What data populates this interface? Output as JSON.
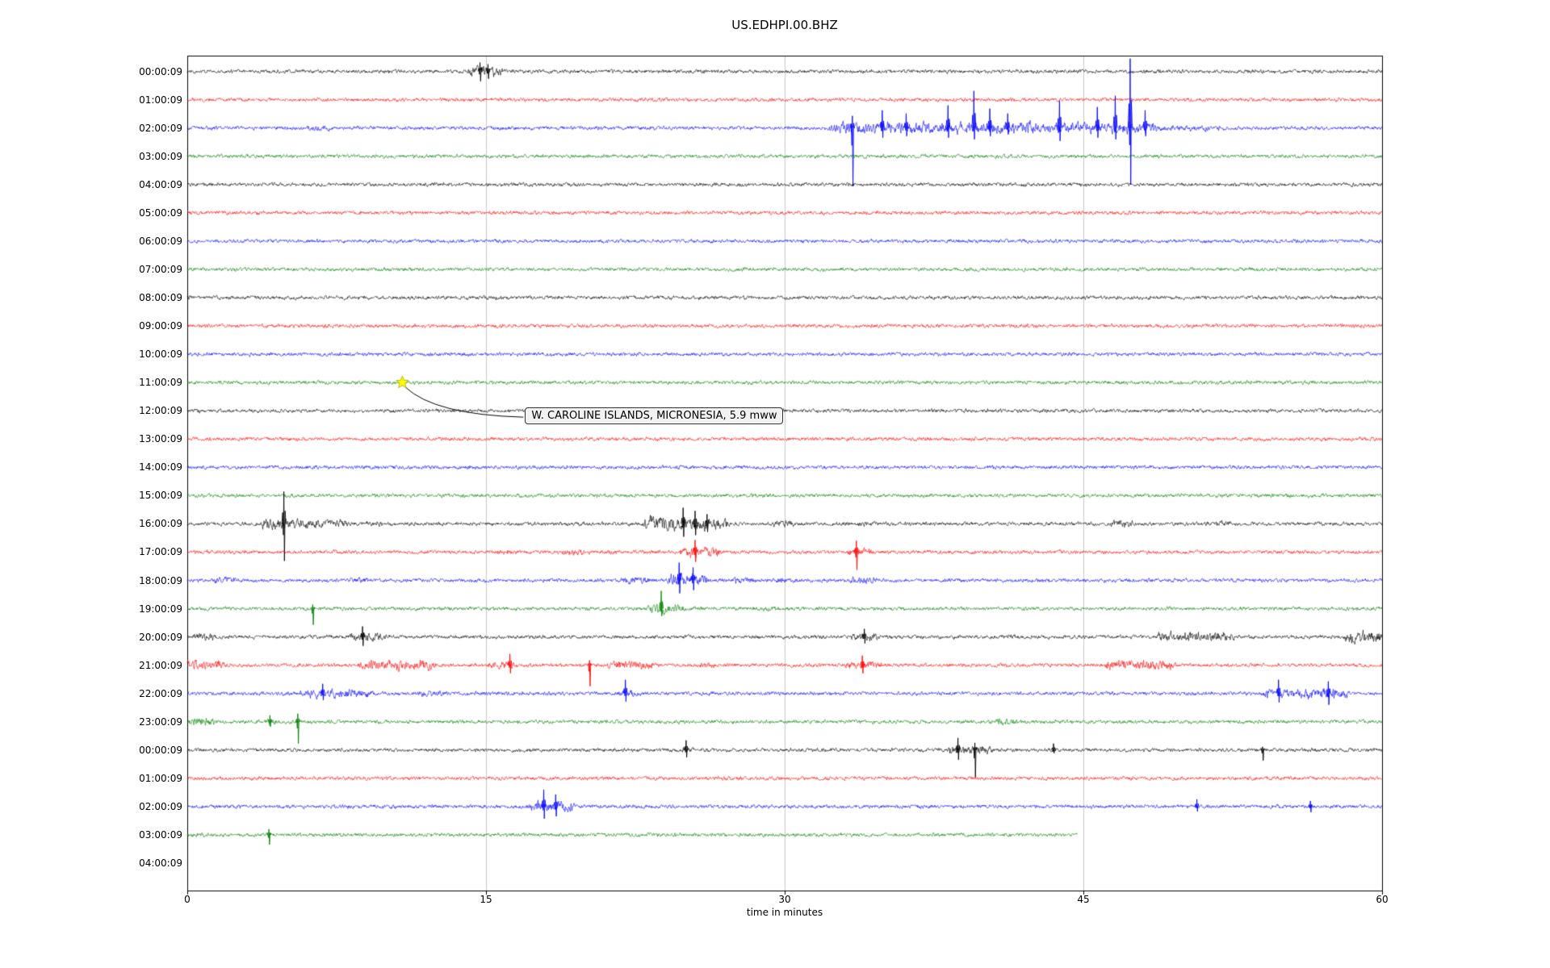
{
  "chart_data": {
    "type": "line",
    "subtype": "helicorder-seismogram",
    "title": "US.EDHPI.00.BHZ",
    "xlabel": "time in minutes",
    "xlim": [
      0,
      60
    ],
    "x_ticks": [
      0,
      15,
      30,
      45,
      60
    ],
    "grid": true,
    "grid_lines_minutes": [
      15,
      30,
      45
    ],
    "colors": {
      "black": "#000000",
      "red": "#ff0000",
      "blue": "#0000ff",
      "green": "#008000"
    },
    "annotation": {
      "text": "W. CAROLINE ISLANDS, MICRONESIA, 5.9 mww",
      "row_index": 11,
      "row_label": "11:00:09",
      "x_minutes": 10.8,
      "marker": "star",
      "marker_color": "#ffff00"
    },
    "rows": [
      {
        "label": "00:00:09",
        "color": "black",
        "bursts": [
          [
            14.2,
            15.7,
            8
          ]
        ],
        "spikes": [
          [
            14.7,
            11,
            12
          ],
          [
            15.1,
            9,
            9
          ]
        ]
      },
      {
        "label": "01:00:09",
        "color": "red",
        "bursts": [],
        "spikes": []
      },
      {
        "label": "02:00:09",
        "color": "blue",
        "bursts": [
          [
            6.1,
            7.2,
            4
          ],
          [
            32.3,
            44.5,
            8
          ],
          [
            44.5,
            48.6,
            8
          ],
          [
            48.6,
            52,
            4
          ]
        ],
        "spikes": [
          [
            33.4,
            15,
            72
          ],
          [
            34.9,
            22,
            12
          ],
          [
            36.1,
            18,
            10
          ],
          [
            38.2,
            28,
            12
          ],
          [
            39.5,
            46,
            14
          ],
          [
            40.3,
            24,
            10
          ],
          [
            41.2,
            18,
            8
          ],
          [
            43.8,
            34,
            16
          ],
          [
            45.7,
            26,
            12
          ],
          [
            46.6,
            40,
            14
          ],
          [
            47.35,
            86,
            70
          ],
          [
            48.1,
            22,
            10
          ]
        ]
      },
      {
        "label": "03:00:09",
        "color": "green",
        "bursts": [],
        "spikes": []
      },
      {
        "label": "04:00:09",
        "color": "black",
        "bursts": [
          [
            11.4,
            13.2,
            3
          ],
          [
            30.5,
            31.2,
            2.5
          ]
        ],
        "spikes": []
      },
      {
        "label": "05:00:09",
        "color": "red",
        "bursts": [],
        "spikes": []
      },
      {
        "label": "06:00:09",
        "color": "blue",
        "bursts": [],
        "spikes": []
      },
      {
        "label": "07:00:09",
        "color": "green",
        "bursts": [],
        "spikes": []
      },
      {
        "label": "08:00:09",
        "color": "black",
        "bursts": [],
        "spikes": []
      },
      {
        "label": "09:00:09",
        "color": "red",
        "bursts": [],
        "spikes": []
      },
      {
        "label": "10:00:09",
        "color": "blue",
        "bursts": [],
        "spikes": []
      },
      {
        "label": "11:00:09",
        "color": "green",
        "bursts": [],
        "spikes": []
      },
      {
        "label": "12:00:09",
        "color": "black",
        "bursts": [],
        "spikes": []
      },
      {
        "label": "13:00:09",
        "color": "red",
        "bursts": [],
        "spikes": []
      },
      {
        "label": "14:00:09",
        "color": "blue",
        "bursts": [],
        "spikes": []
      },
      {
        "label": "15:00:09",
        "color": "green",
        "bursts": [],
        "spikes": []
      },
      {
        "label": "16:00:09",
        "color": "black",
        "bursts": [
          [
            3.8,
            5.6,
            8
          ],
          [
            5.6,
            8.0,
            6
          ],
          [
            9.0,
            9.7,
            4
          ],
          [
            23,
            24.5,
            10
          ],
          [
            24.5,
            27,
            9
          ],
          [
            29.5,
            30.3,
            5
          ],
          [
            33.7,
            34.5,
            4
          ],
          [
            46.4,
            47.4,
            5
          ],
          [
            51.3,
            52.4,
            4
          ],
          [
            56.8,
            57.6,
            3
          ]
        ],
        "spikes": [
          [
            4.85,
            40,
            46
          ],
          [
            24.9,
            20,
            16
          ],
          [
            25.5,
            16,
            14
          ],
          [
            26.1,
            12,
            10
          ]
        ]
      },
      {
        "label": "17:00:09",
        "color": "red",
        "bursts": [
          [
            15.4,
            16.3,
            4
          ],
          [
            18.8,
            19.7,
            5
          ],
          [
            21,
            21.6,
            3
          ],
          [
            24.8,
            26.6,
            7
          ],
          [
            33.2,
            34.3,
            5
          ]
        ],
        "spikes": [
          [
            25.5,
            15,
            12
          ],
          [
            33.6,
            14,
            22
          ]
        ]
      },
      {
        "label": "18:00:09",
        "color": "blue",
        "bursts": [
          [
            1.4,
            2.3,
            5
          ],
          [
            8.1,
            9.0,
            4
          ],
          [
            21.8,
            23.2,
            5
          ],
          [
            24.2,
            26,
            8
          ],
          [
            27.4,
            28.4,
            5
          ],
          [
            29.6,
            30.6,
            4
          ],
          [
            33.4,
            34.6,
            5
          ]
        ],
        "spikes": [
          [
            24.7,
            22,
            16
          ],
          [
            25.4,
            16,
            12
          ]
        ]
      },
      {
        "label": "19:00:09",
        "color": "green",
        "bursts": [
          [
            23.2,
            24.8,
            7
          ],
          [
            25.5,
            26.5,
            3
          ],
          [
            28.6,
            29.5,
            4
          ]
        ],
        "spikes": [
          [
            6.3,
            5,
            20
          ],
          [
            23.8,
            22,
            9
          ]
        ]
      },
      {
        "label": "20:00:09",
        "color": "black",
        "bursts": [
          [
            0.4,
            1.3,
            5
          ],
          [
            8.2,
            10,
            6
          ],
          [
            33.4,
            34.6,
            5
          ],
          [
            41,
            41.6,
            3
          ],
          [
            48.8,
            52.4,
            7
          ],
          [
            58.2,
            60,
            8
          ]
        ],
        "spikes": [
          [
            8.8,
            13,
            11
          ],
          [
            34,
            10,
            8
          ]
        ]
      },
      {
        "label": "21:00:09",
        "color": "red",
        "bursts": [
          [
            0,
            1.7,
            7
          ],
          [
            8.7,
            12.3,
            7
          ],
          [
            15.2,
            16.3,
            5
          ],
          [
            21.2,
            23.3,
            6
          ],
          [
            25.8,
            26.4,
            4
          ],
          [
            33.1,
            34.7,
            6
          ],
          [
            46.2,
            49.4,
            7
          ]
        ],
        "spikes": [
          [
            16.2,
            14,
            10
          ],
          [
            20.2,
            6,
            26
          ],
          [
            33.9,
            12,
            10
          ]
        ]
      },
      {
        "label": "22:00:09",
        "color": "blue",
        "bursts": [
          [
            5.7,
            9.2,
            6
          ],
          [
            11.7,
            13.1,
            4
          ],
          [
            21.7,
            22.6,
            5
          ],
          [
            50.4,
            51.1,
            3
          ],
          [
            54.1,
            58.2,
            7
          ]
        ],
        "spikes": [
          [
            6.8,
            12,
            8
          ],
          [
            22.0,
            17,
            10
          ],
          [
            54.8,
            17,
            11
          ],
          [
            57.3,
            15,
            14
          ]
        ]
      },
      {
        "label": "23:00:09",
        "color": "green",
        "bursts": [
          [
            0.1,
            1.3,
            6
          ],
          [
            3.9,
            4.6,
            4
          ],
          [
            40.7,
            41.5,
            5
          ]
        ],
        "spikes": [
          [
            4.15,
            8,
            6
          ],
          [
            5.55,
            10,
            27
          ]
        ]
      },
      {
        "label": "00:00:09",
        "color": "black",
        "bursts": [
          [
            24.8,
            25.4,
            4
          ],
          [
            38.2,
            40.3,
            6
          ],
          [
            53.7,
            54.3,
            3
          ]
        ],
        "spikes": [
          [
            25.05,
            12,
            9
          ],
          [
            38.7,
            15,
            12
          ],
          [
            39.55,
            9,
            34
          ],
          [
            43.5,
            8,
            4
          ],
          [
            54.0,
            4,
            13
          ]
        ]
      },
      {
        "label": "01:00:09",
        "color": "red",
        "bursts": [],
        "spikes": []
      },
      {
        "label": "02:00:09",
        "color": "blue",
        "bursts": [
          [
            17.2,
            19.3,
            7
          ]
        ],
        "spikes": [
          [
            17.9,
            21,
            15
          ],
          [
            18.5,
            15,
            12
          ],
          [
            50.7,
            9,
            6
          ],
          [
            56.4,
            7,
            7
          ]
        ]
      },
      {
        "label": "03:00:09",
        "color": "green",
        "end": 44.7,
        "bursts": [
          [
            0.3,
            0.9,
            3
          ]
        ],
        "spikes": [
          [
            4.1,
            7,
            12
          ]
        ]
      },
      {
        "label": "04:00:09",
        "color": "black",
        "end": 0,
        "bursts": [],
        "spikes": []
      }
    ]
  }
}
